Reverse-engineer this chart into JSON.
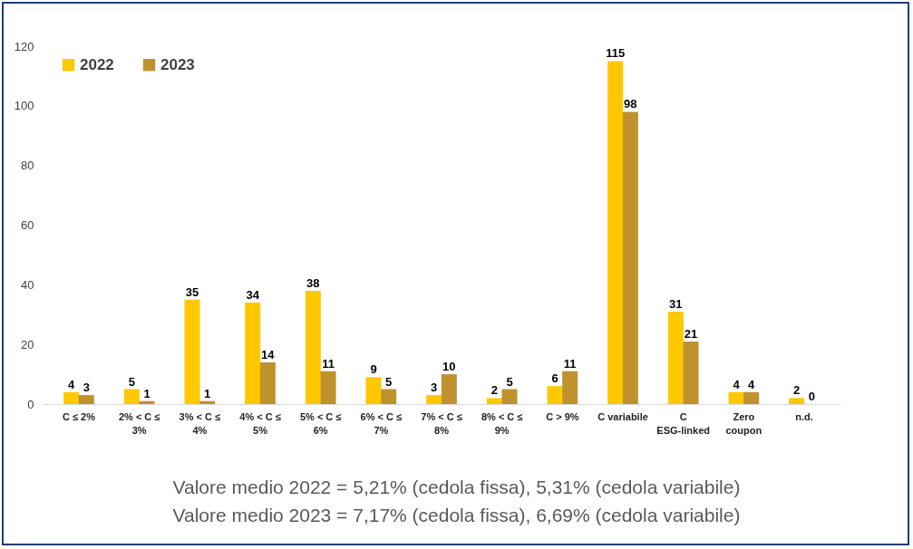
{
  "chart_data": {
    "type": "bar",
    "categories": [
      "C ≤ 2%",
      "2% < C ≤ 3%",
      "3% < C ≤ 4%",
      "4% < C ≤ 5%",
      "5% < C ≤ 6%",
      "6% < C ≤ 7%",
      "7% < C ≤ 8%",
      "8% < C ≤ 9%",
      "C > 9%",
      "C variabile",
      "C ESG-linked",
      "Zero coupon",
      "n.d."
    ],
    "series": [
      {
        "name": "2022",
        "color": "#ffc800",
        "values": [
          4,
          5,
          35,
          34,
          38,
          9,
          3,
          2,
          6,
          115,
          31,
          4,
          2
        ]
      },
      {
        "name": "2023",
        "color": "#c0922e",
        "values": [
          3,
          1,
          1,
          14,
          11,
          5,
          10,
          5,
          11,
          98,
          21,
          4,
          0
        ]
      }
    ],
    "ylim": [
      0,
      120
    ],
    "yticks": [
      0,
      20,
      40,
      60,
      80,
      100,
      120
    ],
    "data_labels": true,
    "legend": "top left",
    "grid": false,
    "annotations": [
      "Valore medio 2022 = 5,21% (cedola fissa), 5,31% (cedola variabile)",
      "Valore medio 2023 = 7,17% (cedola fissa), 6,69% (cedola variabile)"
    ]
  }
}
